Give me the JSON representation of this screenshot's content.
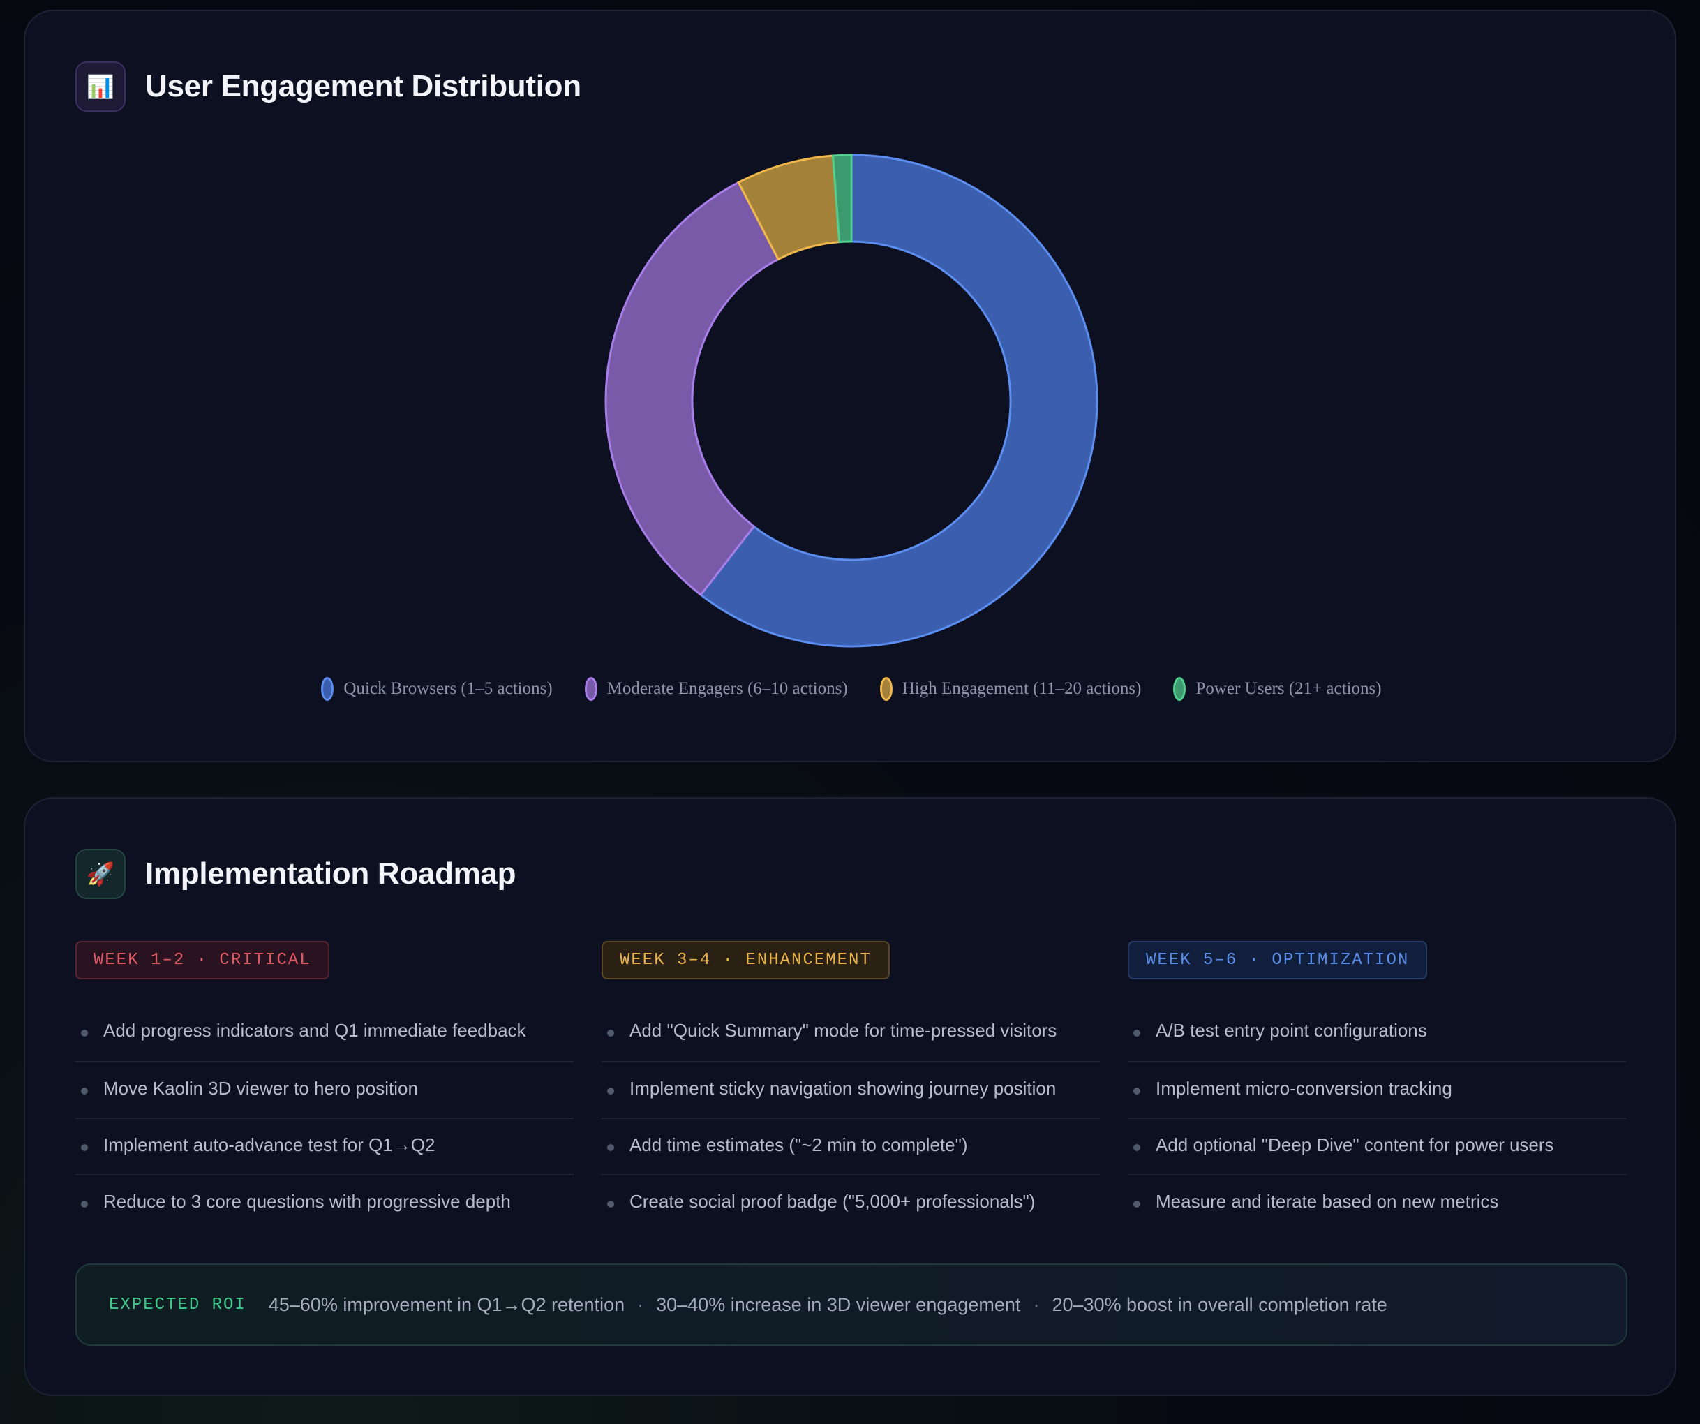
{
  "engagement": {
    "title": "User Engagement Distribution",
    "icon": "bar-chart-icon"
  },
  "chart_data": {
    "type": "pie",
    "variant": "donut",
    "title": "User Engagement Distribution",
    "categories": [
      "Quick Browsers (1–5 actions)",
      "Moderate Engagers (6–10 actions)",
      "High Engagement (11–20 actions)",
      "Power Users (21+ actions)"
    ],
    "values": [
      60.5,
      31.9,
      6.4,
      1.2
    ],
    "colors": [
      "#3b5fae",
      "#785aa8",
      "#a4823a",
      "#3d9a6e"
    ],
    "border_colors": [
      "#5b8ef0",
      "#a77de8",
      "#f0b84a",
      "#4fd08e"
    ],
    "legend": "bottom"
  },
  "roadmap": {
    "title": "Implementation Roadmap",
    "icon": "rocket-icon",
    "columns": [
      {
        "tag": "WEEK 1–2 · CRITICAL",
        "items": [
          "Add progress indicators and Q1 immediate feedback",
          "Move Kaolin 3D viewer to hero position",
          "Implement auto-advance test for Q1→Q2",
          "Reduce to 3 core questions with progressive depth"
        ]
      },
      {
        "tag": "WEEK 3–4 · ENHANCEMENT",
        "items": [
          "Add \"Quick Summary\" mode for time-pressed visitors",
          "Implement sticky navigation showing journey position",
          "Add time estimates (\"~2 min to complete\")",
          "Create social proof badge (\"5,000+ professionals\")"
        ]
      },
      {
        "tag": "WEEK 5–6 · OPTIMIZATION",
        "items": [
          "A/B test entry point configurations",
          "Implement micro-conversion tracking",
          "Add optional \"Deep Dive\" content for power users",
          "Measure and iterate based on new metrics"
        ]
      }
    ],
    "roi": {
      "label": "EXPECTED ROI",
      "items": [
        "45–60% improvement in Q1→Q2 retention",
        "30–40% increase in 3D viewer engagement",
        "20–30% boost in overall completion rate"
      ],
      "separator": "·"
    }
  }
}
